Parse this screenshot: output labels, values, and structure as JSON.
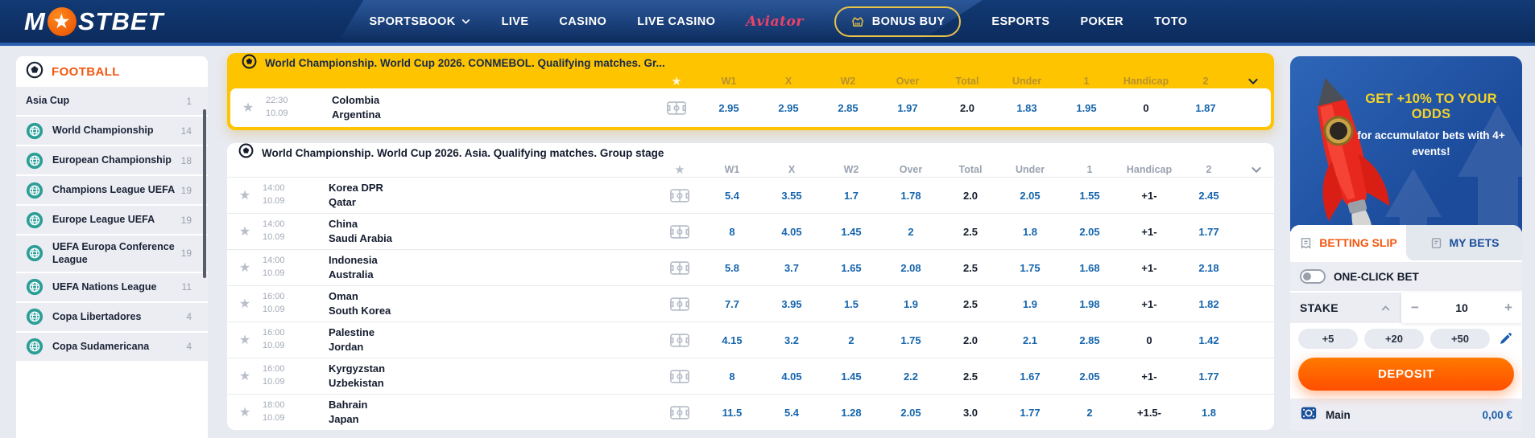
{
  "nav": {
    "logo_pre": "M",
    "logo_star": "★",
    "logo_post": "STBET",
    "items": [
      {
        "label": "SPORTSBOOK",
        "chevron": true
      },
      {
        "label": "LIVE"
      },
      {
        "label": "CASINO"
      },
      {
        "label": "LIVE CASINO"
      },
      {
        "label": "Aviator",
        "style": "aviator"
      },
      {
        "label": "BONUS BUY",
        "style": "bonus"
      },
      {
        "label": "ESPORTS"
      },
      {
        "label": "POKER"
      },
      {
        "label": "TOTO"
      }
    ]
  },
  "sidebar": {
    "title": "FOOTBALL",
    "items": [
      {
        "label": "Asia Cup",
        "count": "1",
        "icon": false
      },
      {
        "label": "World Championship",
        "count": "14",
        "icon": true
      },
      {
        "label": "European Championship",
        "count": "18",
        "icon": true
      },
      {
        "label": "Champions League UEFA",
        "count": "19",
        "icon": true
      },
      {
        "label": "Europe League UEFA",
        "count": "19",
        "icon": true
      },
      {
        "label": "UEFA Europa Conference League",
        "count": "19",
        "icon": true
      },
      {
        "label": "UEFA Nations League",
        "count": "11",
        "icon": true
      },
      {
        "label": "Copa Libertadores",
        "count": "4",
        "icon": true
      },
      {
        "label": "Copa Sudamericana",
        "count": "4",
        "icon": true
      }
    ]
  },
  "tables": [
    {
      "title": "World Championship. World Cup 2026. CONMEBOL. Qualifying matches. Gr...",
      "columns": [
        "W1",
        "X",
        "W2",
        "Over",
        "Total",
        "Under",
        "1",
        "Handicap",
        "2"
      ],
      "rows": [
        {
          "time": "22:30",
          "date": "10.09",
          "home": "Colombia",
          "away": "Argentina",
          "odds": [
            "2.95",
            "2.95",
            "2.85",
            "1.97",
            "2.0",
            "1.83",
            "1.95",
            "0",
            "1.87"
          ]
        }
      ]
    },
    {
      "title": "World Championship. World Cup 2026. Asia. Qualifying matches. Group stage",
      "columns": [
        "W1",
        "X",
        "W2",
        "Over",
        "Total",
        "Under",
        "1",
        "Handicap",
        "2"
      ],
      "rows": [
        {
          "time": "14:00",
          "date": "10.09",
          "home": "Korea DPR",
          "away": "Qatar",
          "odds": [
            "5.4",
            "3.55",
            "1.7",
            "1.78",
            "2.0",
            "2.05",
            "1.55",
            "+1-",
            "2.45"
          ]
        },
        {
          "time": "14:00",
          "date": "10.09",
          "home": "China",
          "away": "Saudi Arabia",
          "odds": [
            "8",
            "4.05",
            "1.45",
            "2",
            "2.5",
            "1.8",
            "2.05",
            "+1-",
            "1.77"
          ]
        },
        {
          "time": "14:00",
          "date": "10.09",
          "home": "Indonesia",
          "away": "Australia",
          "odds": [
            "5.8",
            "3.7",
            "1.65",
            "2.08",
            "2.5",
            "1.75",
            "1.68",
            "+1-",
            "2.18"
          ]
        },
        {
          "time": "16:00",
          "date": "10.09",
          "home": "Oman",
          "away": "South Korea",
          "odds": [
            "7.7",
            "3.95",
            "1.5",
            "1.9",
            "2.5",
            "1.9",
            "1.98",
            "+1-",
            "1.82"
          ]
        },
        {
          "time": "16:00",
          "date": "10.09",
          "home": "Palestine",
          "away": "Jordan",
          "odds": [
            "4.15",
            "3.2",
            "2",
            "1.75",
            "2.0",
            "2.1",
            "2.85",
            "0",
            "1.42"
          ]
        },
        {
          "time": "16:00",
          "date": "10.09",
          "home": "Kyrgyzstan",
          "away": "Uzbekistan",
          "odds": [
            "8",
            "4.05",
            "1.45",
            "2.2",
            "2.5",
            "1.67",
            "2.05",
            "+1-",
            "1.77"
          ]
        },
        {
          "time": "18:00",
          "date": "10.09",
          "home": "Bahrain",
          "away": "Japan",
          "odds": [
            "11.5",
            "5.4",
            "1.28",
            "2.05",
            "3.0",
            "1.77",
            "2",
            "+1.5-",
            "1.8"
          ]
        }
      ]
    }
  ],
  "promo": {
    "line1": "GET +10% TO YOUR ODDS",
    "line2": "for accumulator bets with 4+ events!",
    "accent_color": "#f5d327"
  },
  "betslip": {
    "tabs": [
      {
        "label": "BETTING SLIP"
      },
      {
        "label": "MY BETS"
      }
    ],
    "one_click_label": "ONE-CLICK BET",
    "stake_label": "STAKE",
    "stake_value": "10",
    "minus_label": "−",
    "plus_label": "+",
    "quick_buttons": [
      "+5",
      "+20",
      "+50"
    ],
    "deposit_label": "DEPOSIT",
    "wallet": {
      "name": "Main",
      "balance": "0,00 €"
    }
  },
  "colors": {
    "accent_yellow": "#ffc400",
    "odds_blue": "#1565ad",
    "brand_orange": "#f2570f",
    "nav_navy": "#0c2b5c"
  }
}
